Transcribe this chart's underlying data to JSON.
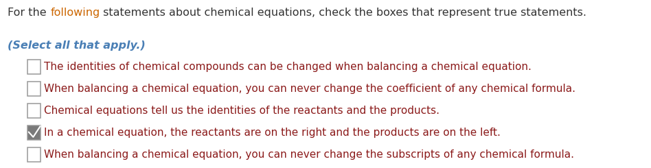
{
  "background_color": "#ffffff",
  "header_before": "For the ",
  "header_colored": "following",
  "header_after": " statements about chemical equations, check the boxes that represent true statements.",
  "header_base_color": "#333333",
  "header_word_color": "#cc6600",
  "header_fontsize": 11.5,
  "subtitle_text": "(Select all that apply.)",
  "subtitle_color": "#4a7fb5",
  "subtitle_fontsize": 11.5,
  "items": [
    {
      "text": "The identities of chemical compounds can be changed when balancing a chemical equation.",
      "checked": false,
      "color": "#8b1a1a"
    },
    {
      "text": "When balancing a chemical equation, you can never change the coefficient of any chemical formula.",
      "checked": false,
      "color": "#8b1a1a"
    },
    {
      "text": "Chemical equations tell us the identities of the reactants and the products.",
      "checked": false,
      "color": "#8b1a1a"
    },
    {
      "text": "In a chemical equation, the reactants are on the right and the products are on the left.",
      "checked": true,
      "color": "#8b1a1a"
    },
    {
      "text": "When balancing a chemical equation, you can never change the subscripts of any chemical formula.",
      "checked": false,
      "color": "#8b1a1a"
    }
  ],
  "item_fontsize": 11.0,
  "checkbox_edge_color": "#999999",
  "checkbox_checked_face": "#7a7a7a",
  "checkbox_unchecked_face": "#ffffff"
}
